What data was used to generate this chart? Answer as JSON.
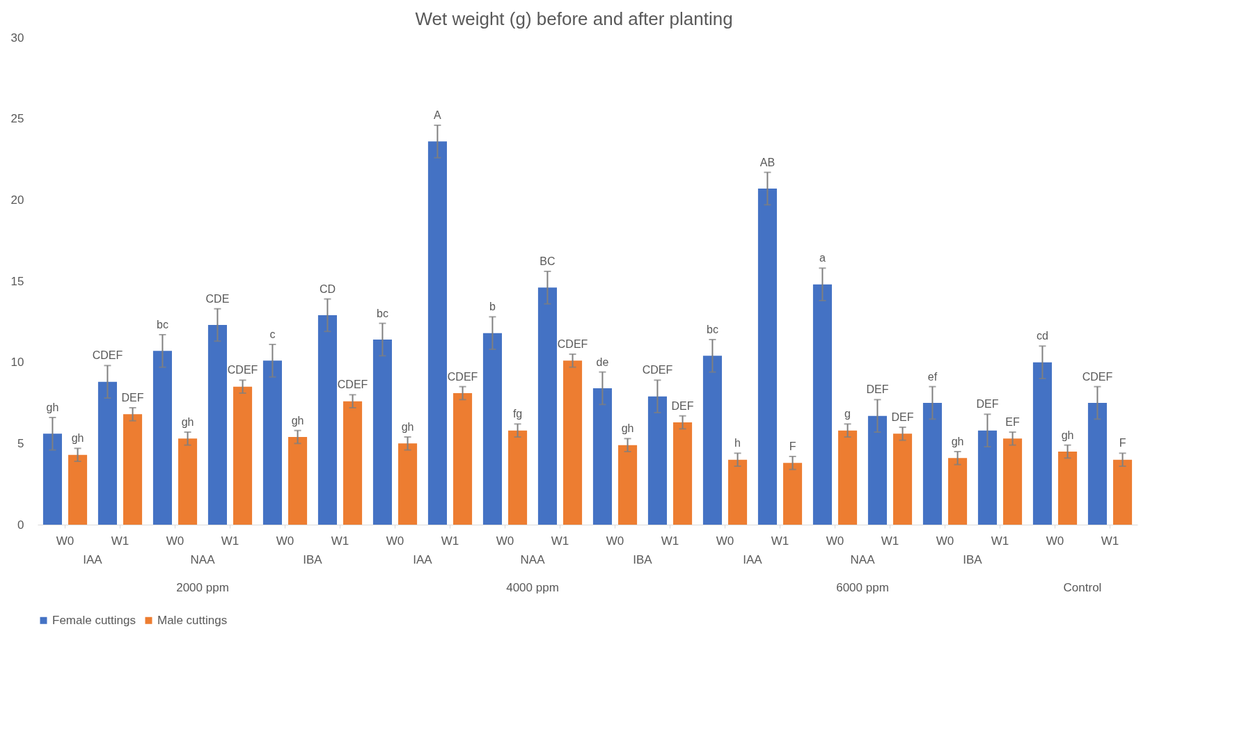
{
  "chart_data": {
    "type": "bar",
    "title": "Wet weight (g) before and after planting",
    "categories": [
      "W0",
      "W1",
      "W0",
      "W1",
      "W0",
      "W1",
      "W0",
      "W1",
      "W0",
      "W1",
      "W0",
      "W1",
      "W0",
      "W1",
      "W0",
      "W1",
      "W0",
      "W1",
      "W0",
      "W1"
    ],
    "series": [
      {
        "name": "Female cuttings",
        "color": "#4472c4",
        "values": [
          5.6,
          8.8,
          10.7,
          12.3,
          10.1,
          12.9,
          11.4,
          23.6,
          11.8,
          14.6,
          8.4,
          7.9,
          10.4,
          20.7,
          14.8,
          6.7,
          7.5,
          5.8,
          10.0,
          7.5
        ],
        "errors": [
          1,
          1,
          1,
          1,
          1,
          1,
          1,
          1,
          1,
          1,
          1,
          1,
          1,
          1,
          1,
          1,
          1,
          1,
          1,
          1
        ],
        "value_labels": [
          "gh",
          "CDEF",
          "bc",
          "CDE",
          "c",
          "CD",
          "bc",
          "A",
          "b",
          "BC",
          "de",
          "CDEF",
          "bc",
          "AB",
          "a",
          "DEF",
          "ef",
          "DEF",
          "cd",
          "CDEF"
        ]
      },
      {
        "name": "Male cuttings",
        "color": "#ed7d31",
        "values": [
          4.3,
          6.8,
          5.3,
          8.5,
          5.4,
          7.6,
          5.0,
          8.1,
          5.8,
          10.1,
          4.9,
          6.3,
          4.0,
          3.8,
          5.8,
          5.6,
          4.1,
          5.3,
          4.5,
          4.0
        ],
        "errors": [
          0.4,
          0.4,
          0.4,
          0.4,
          0.4,
          0.4,
          0.4,
          0.4,
          0.4,
          0.4,
          0.4,
          0.4,
          0.4,
          0.4,
          0.4,
          0.4,
          0.4,
          0.4,
          0.4,
          0.4
        ],
        "value_labels": [
          "gh",
          "DEF",
          "gh",
          "CDEF",
          "gh",
          "CDEF",
          "gh",
          "CDEF",
          "fg",
          "CDEF",
          "gh",
          "DEF",
          "h",
          "F",
          "g",
          "DEF",
          "gh",
          "EF",
          "gh",
          "F"
        ]
      }
    ],
    "ylim": [
      0,
      30
    ],
    "yticks": [
      0,
      5,
      10,
      15,
      20,
      25,
      30
    ],
    "grid": false,
    "legend": "bottom",
    "annotations": [
      "IAA",
      "NAA",
      "IBA",
      "IAA",
      "NAA",
      "IBA",
      "IAA",
      "NAA",
      "IBA",
      "2000 ppm",
      "4000 ppm",
      "6000 ppm",
      "Control"
    ]
  }
}
